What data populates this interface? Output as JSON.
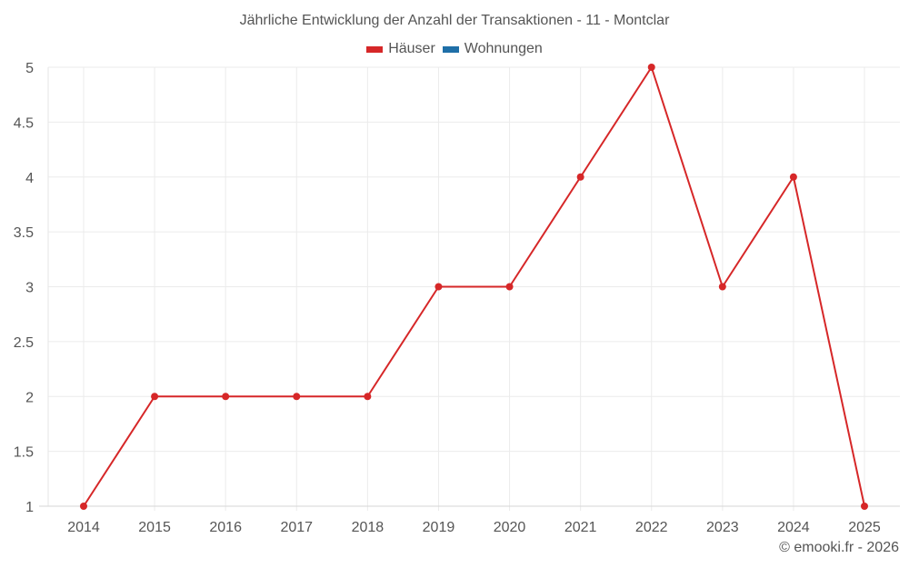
{
  "chart": {
    "title": "Jährliche Entwicklung der Anzahl der Transaktionen - 11 - Montclar",
    "credit": "© emooki.fr - 2026",
    "legend": [
      {
        "label": "Häuser",
        "color": "#d62728"
      },
      {
        "label": "Wohnungen",
        "color": "#1f6fa8"
      }
    ]
  },
  "chart_data": {
    "type": "line",
    "title": "Jährliche Entwicklung der Anzahl der Transaktionen - 11 - Montclar",
    "xlabel": "",
    "ylabel": "",
    "categories": [
      "2014",
      "2015",
      "2016",
      "2017",
      "2018",
      "2019",
      "2020",
      "2021",
      "2022",
      "2023",
      "2024",
      "2025"
    ],
    "series": [
      {
        "name": "Häuser",
        "color": "#d62728",
        "values": [
          1,
          2,
          2,
          2,
          2,
          3,
          3,
          4,
          5,
          3,
          4,
          1
        ]
      },
      {
        "name": "Wohnungen",
        "color": "#1f6fa8",
        "values": []
      }
    ],
    "yticks": [
      "1",
      "1.5",
      "2",
      "2.5",
      "3",
      "3.5",
      "4",
      "4.5",
      "5"
    ],
    "ylim": [
      1,
      5
    ],
    "grid": true,
    "legend_position": "top"
  }
}
